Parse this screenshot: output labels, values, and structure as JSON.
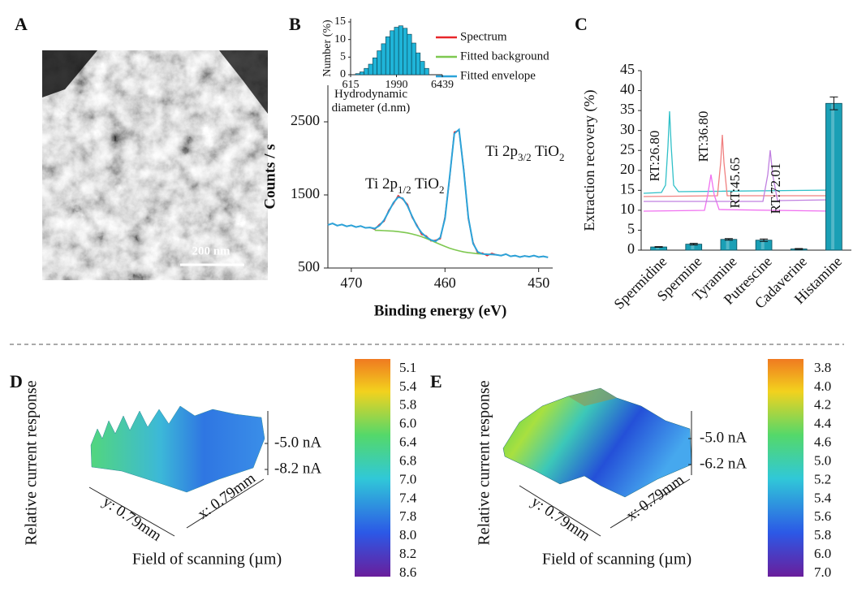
{
  "chart_data": [
    {
      "type": "line",
      "panel": "B",
      "xlabel": "Binding energy (eV)",
      "ylabel": "Counts / s",
      "x": [
        472.5,
        472,
        471.5,
        471,
        470.5,
        470,
        469.5,
        469,
        468.5,
        468,
        467.5,
        467,
        466.5,
        466,
        465.5,
        465,
        464.5,
        464,
        463.5,
        463,
        462.5,
        462,
        461.5,
        461,
        460.5,
        460,
        459.5,
        459,
        458.5,
        458,
        457.5,
        457,
        456.5,
        456,
        455.5,
        455,
        454.5,
        454,
        453.5,
        453,
        452.5,
        452,
        451.5,
        451,
        450.5,
        450,
        449.5,
        449
      ],
      "series": [
        {
          "name": "Spectrum",
          "color": "#e8262a",
          "values": [
            1090,
            1110,
            1080,
            1095,
            1070,
            1085,
            1060,
            1075,
            1050,
            1055,
            1030,
            1095,
            1140,
            1290,
            1380,
            1490,
            1440,
            1370,
            1190,
            1090,
            960,
            940,
            870,
            880,
            900,
            1200,
            1730,
            2360,
            2380,
            1850,
            1170,
            850,
            700,
            705,
            670,
            700,
            680,
            670,
            690,
            660,
            670,
            650,
            665,
            655,
            670,
            650,
            660,
            645
          ]
        },
        {
          "name": "Fitted background",
          "color": "#7ec850",
          "values": [
            null,
            null,
            null,
            null,
            null,
            null,
            null,
            null,
            null,
            null,
            1016,
            1014,
            1011,
            1008,
            1004,
            998,
            990,
            980,
            966,
            949,
            929,
            905,
            878,
            850,
            822,
            795,
            771,
            751,
            734,
            720,
            710,
            703,
            696,
            692,
            688,
            686,
            null,
            null,
            null,
            null,
            null,
            null,
            null,
            null,
            null,
            null,
            null,
            null
          ]
        },
        {
          "name": "Fitted envelope",
          "color": "#2ba3d9",
          "values": [
            1090,
            1110,
            1080,
            1095,
            1070,
            1085,
            1060,
            1075,
            1050,
            1055,
            1040,
            1079,
            1157,
            1273,
            1396,
            1470,
            1453,
            1349,
            1205,
            1075,
            983,
            924,
            883,
            866,
            918,
            1178,
            1745,
            2339,
            2394,
            1833,
            1188,
            835,
            720,
            692,
            688,
            686,
            680,
            670,
            690,
            660,
            670,
            650,
            665,
            655,
            670,
            650,
            660,
            645
          ]
        }
      ],
      "xlim": [
        472.5,
        448.5
      ],
      "xticks": [
        470,
        460,
        450
      ],
      "ylim": [
        500,
        3000
      ],
      "yticks": [
        500,
        1500,
        2500
      ],
      "annotations": [
        {
          "parts": [
            "Ti 2p",
            "1/2",
            " TiO",
            "2"
          ]
        },
        {
          "parts": [
            "Ti 2p",
            "3/2",
            " TiO",
            "2"
          ]
        }
      ],
      "inset": {
        "type": "histogram",
        "xlabel": "Hydrodynamic diameter (d.nm)",
        "ylabel": "Number (%)",
        "color": "#1fb4d8",
        "xscale": "log",
        "bins": [
          697,
          778,
          869,
          971,
          1084,
          1211,
          1352,
          1510,
          1687,
          1884,
          2104,
          2350,
          2624,
          2931,
          3273,
          3656,
          4083,
          4560
        ],
        "values": [
          0.3,
          0.8,
          1.8,
          3,
          4.8,
          6.8,
          8.8,
          10.8,
          12.5,
          13.5,
          13.9,
          13.2,
          11.5,
          9,
          6.2,
          3.8,
          1.8
        ],
        "xlim": [
          615,
          6439
        ],
        "xticks": [
          615,
          1990,
          6439
        ],
        "ylim": [
          0,
          15
        ],
        "yticks": [
          0,
          5,
          10,
          15
        ]
      }
    },
    {
      "type": "bar",
      "panel": "C",
      "ylabel": "Extraction recovery (%)",
      "categories": [
        "Spermidine",
        "Spermine",
        "Tyramine",
        "Putrescine",
        "Cadaverine",
        "Histamine"
      ],
      "values": [
        0.8,
        1.5,
        2.7,
        2.5,
        0.3,
        36.8
      ],
      "errors": [
        0.1,
        0.2,
        0.2,
        0.3,
        0.1,
        1.6
      ],
      "color": "#1a9fb5",
      "ylim": [
        0,
        45
      ],
      "yticks": [
        0,
        5,
        10,
        15,
        20,
        25,
        30,
        35,
        40,
        45
      ],
      "annotations": [
        "RT:26.80",
        "RT:36.80",
        "RT:45.65",
        "RT:72.01"
      ]
    }
  ],
  "panel_a": {
    "label": "A",
    "scale_bar": "200 nm"
  },
  "panel_d": {
    "label": "D",
    "ylabel": "Relative current response",
    "xlabel": "Field of scanning (µm)",
    "y_axis": "y: 0.79mm",
    "x_axis": "x: 0.79mm",
    "z_ticks": [
      "-5.0 nA",
      "-8.2 nA"
    ],
    "colorbar": [
      "5.1",
      "5.4",
      "5.8",
      "6.0",
      "6.4",
      "6.8",
      "7.0",
      "7.4",
      "7.8",
      "8.0",
      "8.2",
      "8.6"
    ]
  },
  "panel_e": {
    "label": "E",
    "ylabel": "Relative current response",
    "xlabel": "Field of scanning (µm)",
    "y_axis": "y: 0.79mm",
    "x_axis": "x: 0.79mm",
    "z_ticks": [
      "-5.0 nA",
      "-6.2 nA"
    ],
    "colorbar": [
      "3.8",
      "4.0",
      "4.2",
      "4.4",
      "4.6",
      "5.0",
      "5.2",
      "5.4",
      "5.6",
      "5.8",
      "6.0",
      "7.0"
    ]
  }
}
